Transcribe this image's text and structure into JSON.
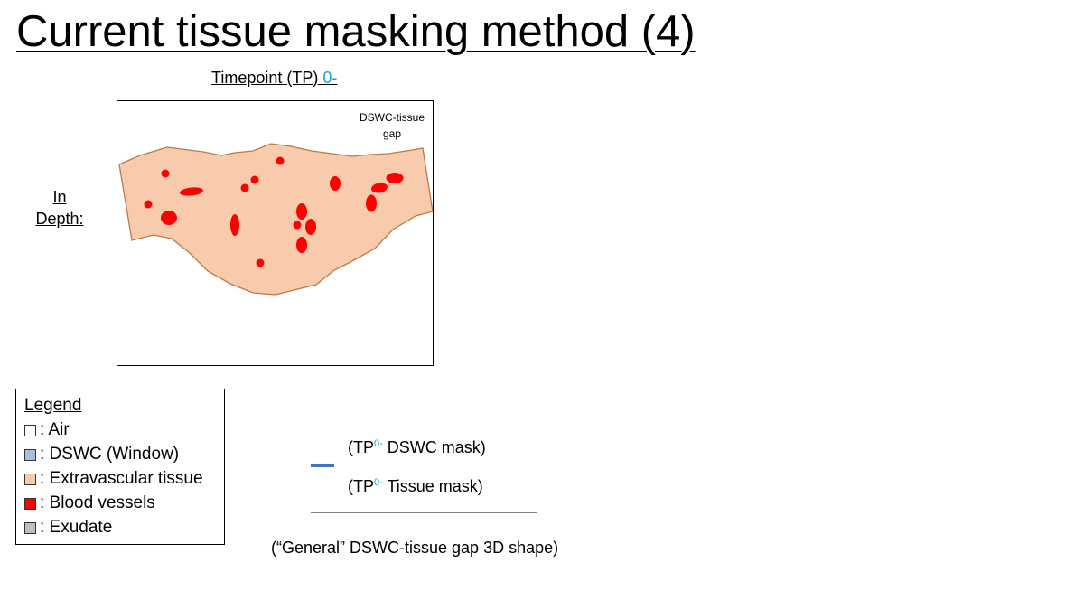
{
  "slide": {
    "title": "Current tissue masking method (4)"
  },
  "timepoint": {
    "label": "Timepoint (TP)",
    "value": "0-"
  },
  "in_depth": {
    "line1": "In",
    "line2": "Depth:"
  },
  "diagram": {
    "gap_label_line1": "DSWC-tissue",
    "gap_label_line2": "gap",
    "colors": {
      "tissue_fill": "#f8cbad",
      "tissue_outline": "#b97a4b",
      "vessel": "#ff0000"
    }
  },
  "legend": {
    "title": "Legend",
    "items": [
      {
        "label": ": Air",
        "color": "#ffffff"
      },
      {
        "label": ": DSWC (Window)",
        "color": "#a9bde0"
      },
      {
        "label": ": Extravascular tissue",
        "color": "#f8cbad"
      },
      {
        "label": ": Blood vessels",
        "color": "#ff0000"
      },
      {
        "label": ": Exudate",
        "color": "#bfbfbf"
      }
    ]
  },
  "masks": {
    "dswc": {
      "prefix": "(TP",
      "sup": "0-",
      "suffix": " DSWC mask)",
      "line_color": "#4472c4"
    },
    "tissue": {
      "prefix": "(TP",
      "sup": "0-",
      "suffix": " Tissue mask)"
    },
    "general_shape": "(“General” DSWC-tissue gap 3D shape)",
    "divider_color": "#7f7f7f"
  }
}
